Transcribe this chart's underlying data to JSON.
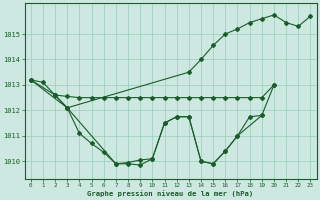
{
  "xlabel": "Graphe pression niveau de la mer (hPa)",
  "background_color": "#cce8e0",
  "grid_color": "#99ccbb",
  "line_color": "#1a5c2a",
  "x_ticks": [
    0,
    1,
    2,
    3,
    4,
    5,
    6,
    7,
    8,
    9,
    10,
    11,
    12,
    13,
    14,
    15,
    16,
    17,
    18,
    19,
    20,
    21,
    22,
    23
  ],
  "ylim": [
    1009.3,
    1016.2
  ],
  "y_ticks": [
    1010,
    1011,
    1012,
    1013,
    1014,
    1015
  ],
  "line1_x": [
    0,
    1,
    2,
    3,
    4,
    5,
    6,
    7,
    8,
    9,
    10,
    11,
    12,
    13,
    14,
    15,
    16,
    17,
    18,
    19,
    20
  ],
  "line1_y": [
    1013.2,
    1013.1,
    1012.6,
    1012.55,
    1012.5,
    1012.5,
    1012.5,
    1012.5,
    1012.5,
    1012.5,
    1012.5,
    1012.5,
    1012.5,
    1012.5,
    1012.5,
    1012.5,
    1012.5,
    1012.5,
    1012.5,
    1012.5,
    1013.0
  ],
  "line2_x": [
    0,
    3,
    7,
    8,
    9,
    10,
    11,
    12,
    13,
    14,
    15,
    16,
    17,
    19
  ],
  "line2_y": [
    1013.2,
    1012.1,
    1009.9,
    1009.95,
    1010.05,
    1010.1,
    1011.5,
    1011.75,
    1011.75,
    1010.0,
    1009.9,
    1010.4,
    1011.0,
    1011.8
  ],
  "line3_x": [
    2,
    3,
    4,
    5,
    6,
    7,
    8,
    9,
    10,
    11,
    12,
    13,
    14,
    15,
    16,
    17,
    18,
    19,
    20
  ],
  "line3_y": [
    1012.6,
    1012.1,
    1011.1,
    1010.7,
    1010.35,
    1009.9,
    1009.9,
    1009.85,
    1010.1,
    1011.5,
    1011.75,
    1011.75,
    1010.0,
    1009.9,
    1010.4,
    1011.0,
    1011.75,
    1011.8,
    1013.0
  ],
  "line4_x": [
    0,
    2,
    3,
    13,
    14,
    15,
    16,
    17,
    18,
    19,
    20,
    21,
    22,
    23
  ],
  "line4_y": [
    1013.2,
    1012.6,
    1012.1,
    1013.5,
    1014.0,
    1014.55,
    1015.0,
    1015.2,
    1015.45,
    1015.6,
    1015.75,
    1015.45,
    1015.3,
    1015.7
  ]
}
